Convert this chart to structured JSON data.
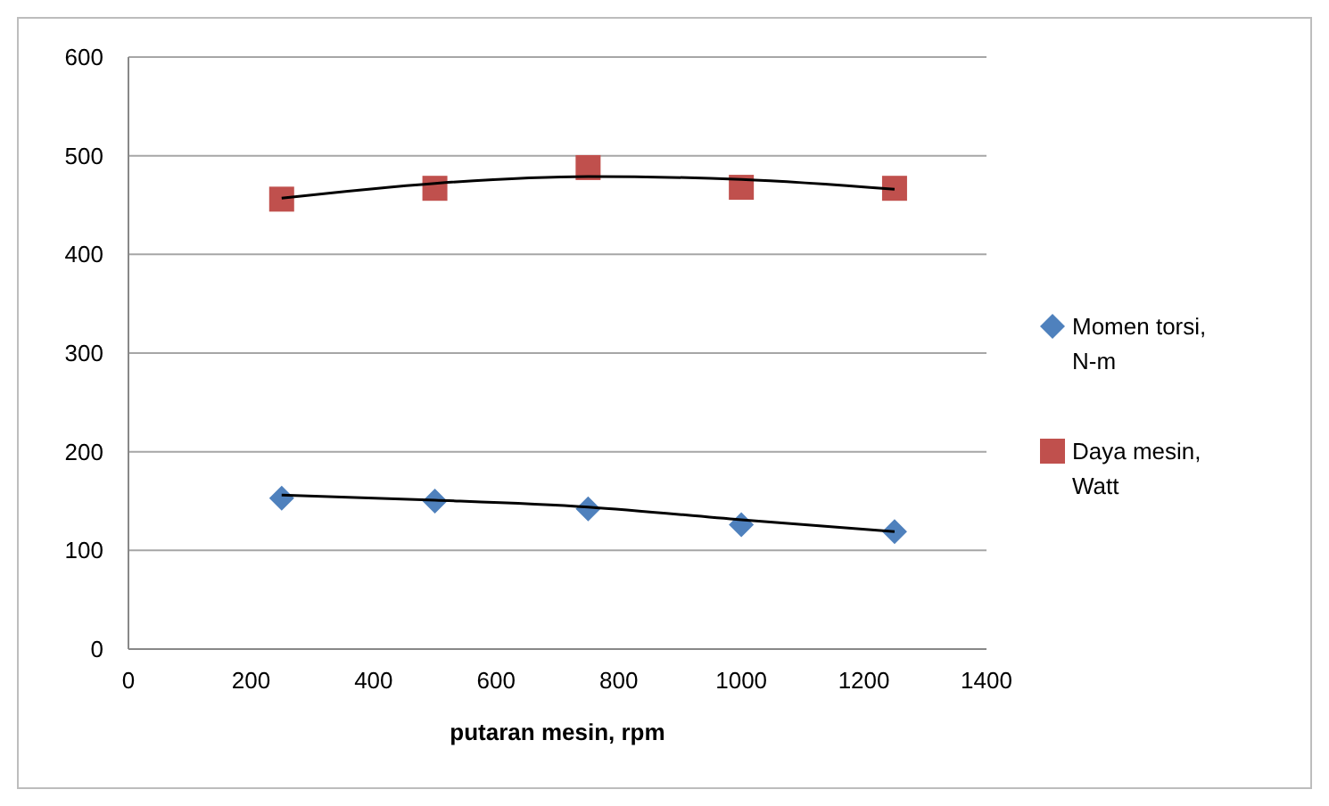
{
  "chart_data": {
    "type": "scatter",
    "xlabel": "putaran mesin, rpm",
    "xlim": [
      0,
      1400
    ],
    "xticks": [
      0,
      200,
      400,
      600,
      800,
      1000,
      1200,
      1400
    ],
    "ylim": [
      0,
      600
    ],
    "yticks": [
      0,
      100,
      200,
      300,
      400,
      500,
      600
    ],
    "grid": "y",
    "legend": "right",
    "series": [
      {
        "name": "Momen torsi, N-m",
        "color": "#4f81bd",
        "marker": "diamond",
        "x": [
          250,
          500,
          750,
          1000,
          1250
        ],
        "values": [
          153,
          150,
          142,
          126,
          119
        ]
      },
      {
        "name": "Daya mesin, Watt",
        "color": "#c0504d",
        "marker": "square",
        "x": [
          250,
          500,
          750,
          1000,
          1250
        ],
        "values": [
          456,
          467,
          488,
          468,
          467
        ]
      },
      {
        "type": "line",
        "color": "#000000",
        "marker": "none",
        "x": [
          250,
          500,
          750,
          1000,
          1250
        ],
        "values": [
          156,
          151,
          144,
          131,
          119
        ]
      },
      {
        "type": "line",
        "color": "#000000",
        "marker": "none",
        "x": [
          250,
          500,
          750,
          1000,
          1250
        ],
        "values": [
          457,
          472,
          479,
          476,
          466
        ]
      }
    ]
  }
}
